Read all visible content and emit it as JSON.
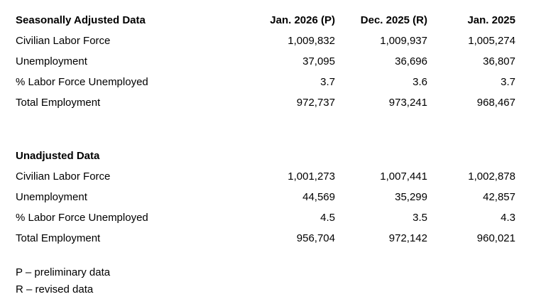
{
  "page": {
    "background_color": "#ffffff",
    "text_color": "#000000"
  },
  "chart_data": [
    {
      "type": "table",
      "title": "Seasonally Adjusted Data",
      "columns": [
        "Jan. 2026 (P)",
        "Dec. 2025 (R)",
        "Jan. 2025"
      ],
      "rows": [
        {
          "label": "Civilian Labor Force",
          "values": [
            "1,009,832",
            "1,009,937",
            "1,005,274"
          ]
        },
        {
          "label": "Unemployment",
          "values": [
            "37,095",
            "36,696",
            "36,807"
          ]
        },
        {
          "label": "% Labor Force Unemployed",
          "values": [
            "3.7",
            "3.6",
            "3.7"
          ]
        },
        {
          "label": "Total Employment",
          "values": [
            "972,737",
            "973,241",
            "968,467"
          ]
        }
      ]
    },
    {
      "type": "table",
      "title": "Unadjusted Data",
      "columns": [],
      "rows": [
        {
          "label": "Civilian Labor Force",
          "values": [
            "1,001,273",
            "1,007,441",
            "1,002,878"
          ]
        },
        {
          "label": "Unemployment",
          "values": [
            "44,569",
            "35,299",
            "42,857"
          ]
        },
        {
          "label": "% Labor Force Unemployed",
          "values": [
            "4.5",
            "3.5",
            "4.3"
          ]
        },
        {
          "label": "Total Employment",
          "values": [
            "956,704",
            "972,142",
            "960,021"
          ]
        }
      ]
    }
  ],
  "footnotes": {
    "preliminary": "P – preliminary data",
    "revised": "R – revised data"
  }
}
